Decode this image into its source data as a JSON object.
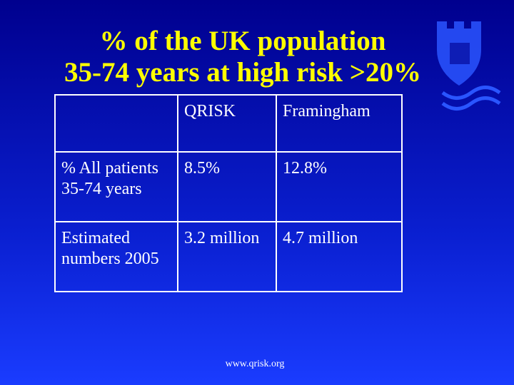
{
  "slide": {
    "title": [
      "% of the UK population",
      "35-74 years at high risk >20%"
    ],
    "table": {
      "header": [
        "QRISK",
        "Framingham"
      ],
      "rows": [
        [
          "% All patients 35-74 years",
          "8.5%",
          "12.8%"
        ],
        [
          "Estimated numbers 2005",
          "3.2 million",
          "4.7 million"
        ]
      ]
    },
    "footer": "www.qrisk.org"
  }
}
